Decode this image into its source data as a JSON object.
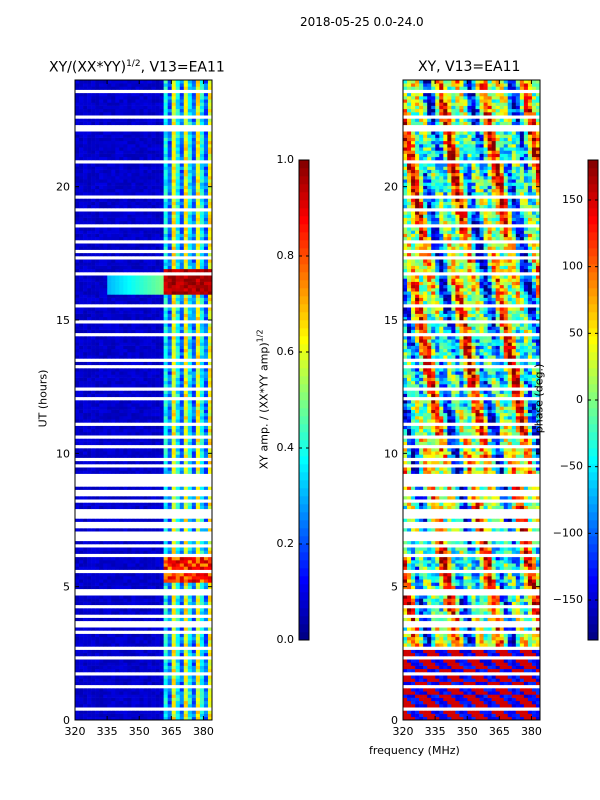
{
  "suptitle": "2018-05-25 0.0-24.0",
  "chart_data": [
    {
      "type": "heatmap",
      "title": "XY/(XX*YY)^1/2, V13=EA11",
      "title_main": "XY/(XX*YY)",
      "title_sup": "1/2",
      "title_rest": ", V13=EA11",
      "xlabel": "",
      "ylabel": "UT (hours)",
      "xlim": [
        320,
        384
      ],
      "ylim": [
        0,
        24
      ],
      "xticks": [
        320,
        335,
        350,
        365,
        380
      ],
      "yticks": [
        0,
        5,
        10,
        15,
        20
      ],
      "colorbar": {
        "label": "XY amp. / (XX*YY amp)^1/2",
        "label_main": "XY amp. / (XX*YY amp)",
        "label_sup": "1/2",
        "range": [
          0.0,
          1.0
        ],
        "ticks": [
          "0.0",
          "0.2",
          "0.4",
          "0.6",
          "0.8",
          "1.0"
        ]
      },
      "colormap": "jet"
    },
    {
      "type": "heatmap",
      "title": "XY, V13=EA11",
      "xlabel": "frequency (MHz)",
      "ylabel": "",
      "xlim": [
        320,
        384
      ],
      "ylim": [
        0,
        24
      ],
      "xticks": [
        320,
        335,
        350,
        365,
        380
      ],
      "yticks": [
        0,
        5,
        10,
        15,
        20
      ],
      "colorbar": {
        "label": "phase (deg.)",
        "range": [
          -180,
          180
        ],
        "ticks": [
          "-150",
          "-100",
          "-50",
          "0",
          "50",
          "100",
          "150"
        ]
      },
      "colormap": "jet"
    }
  ]
}
